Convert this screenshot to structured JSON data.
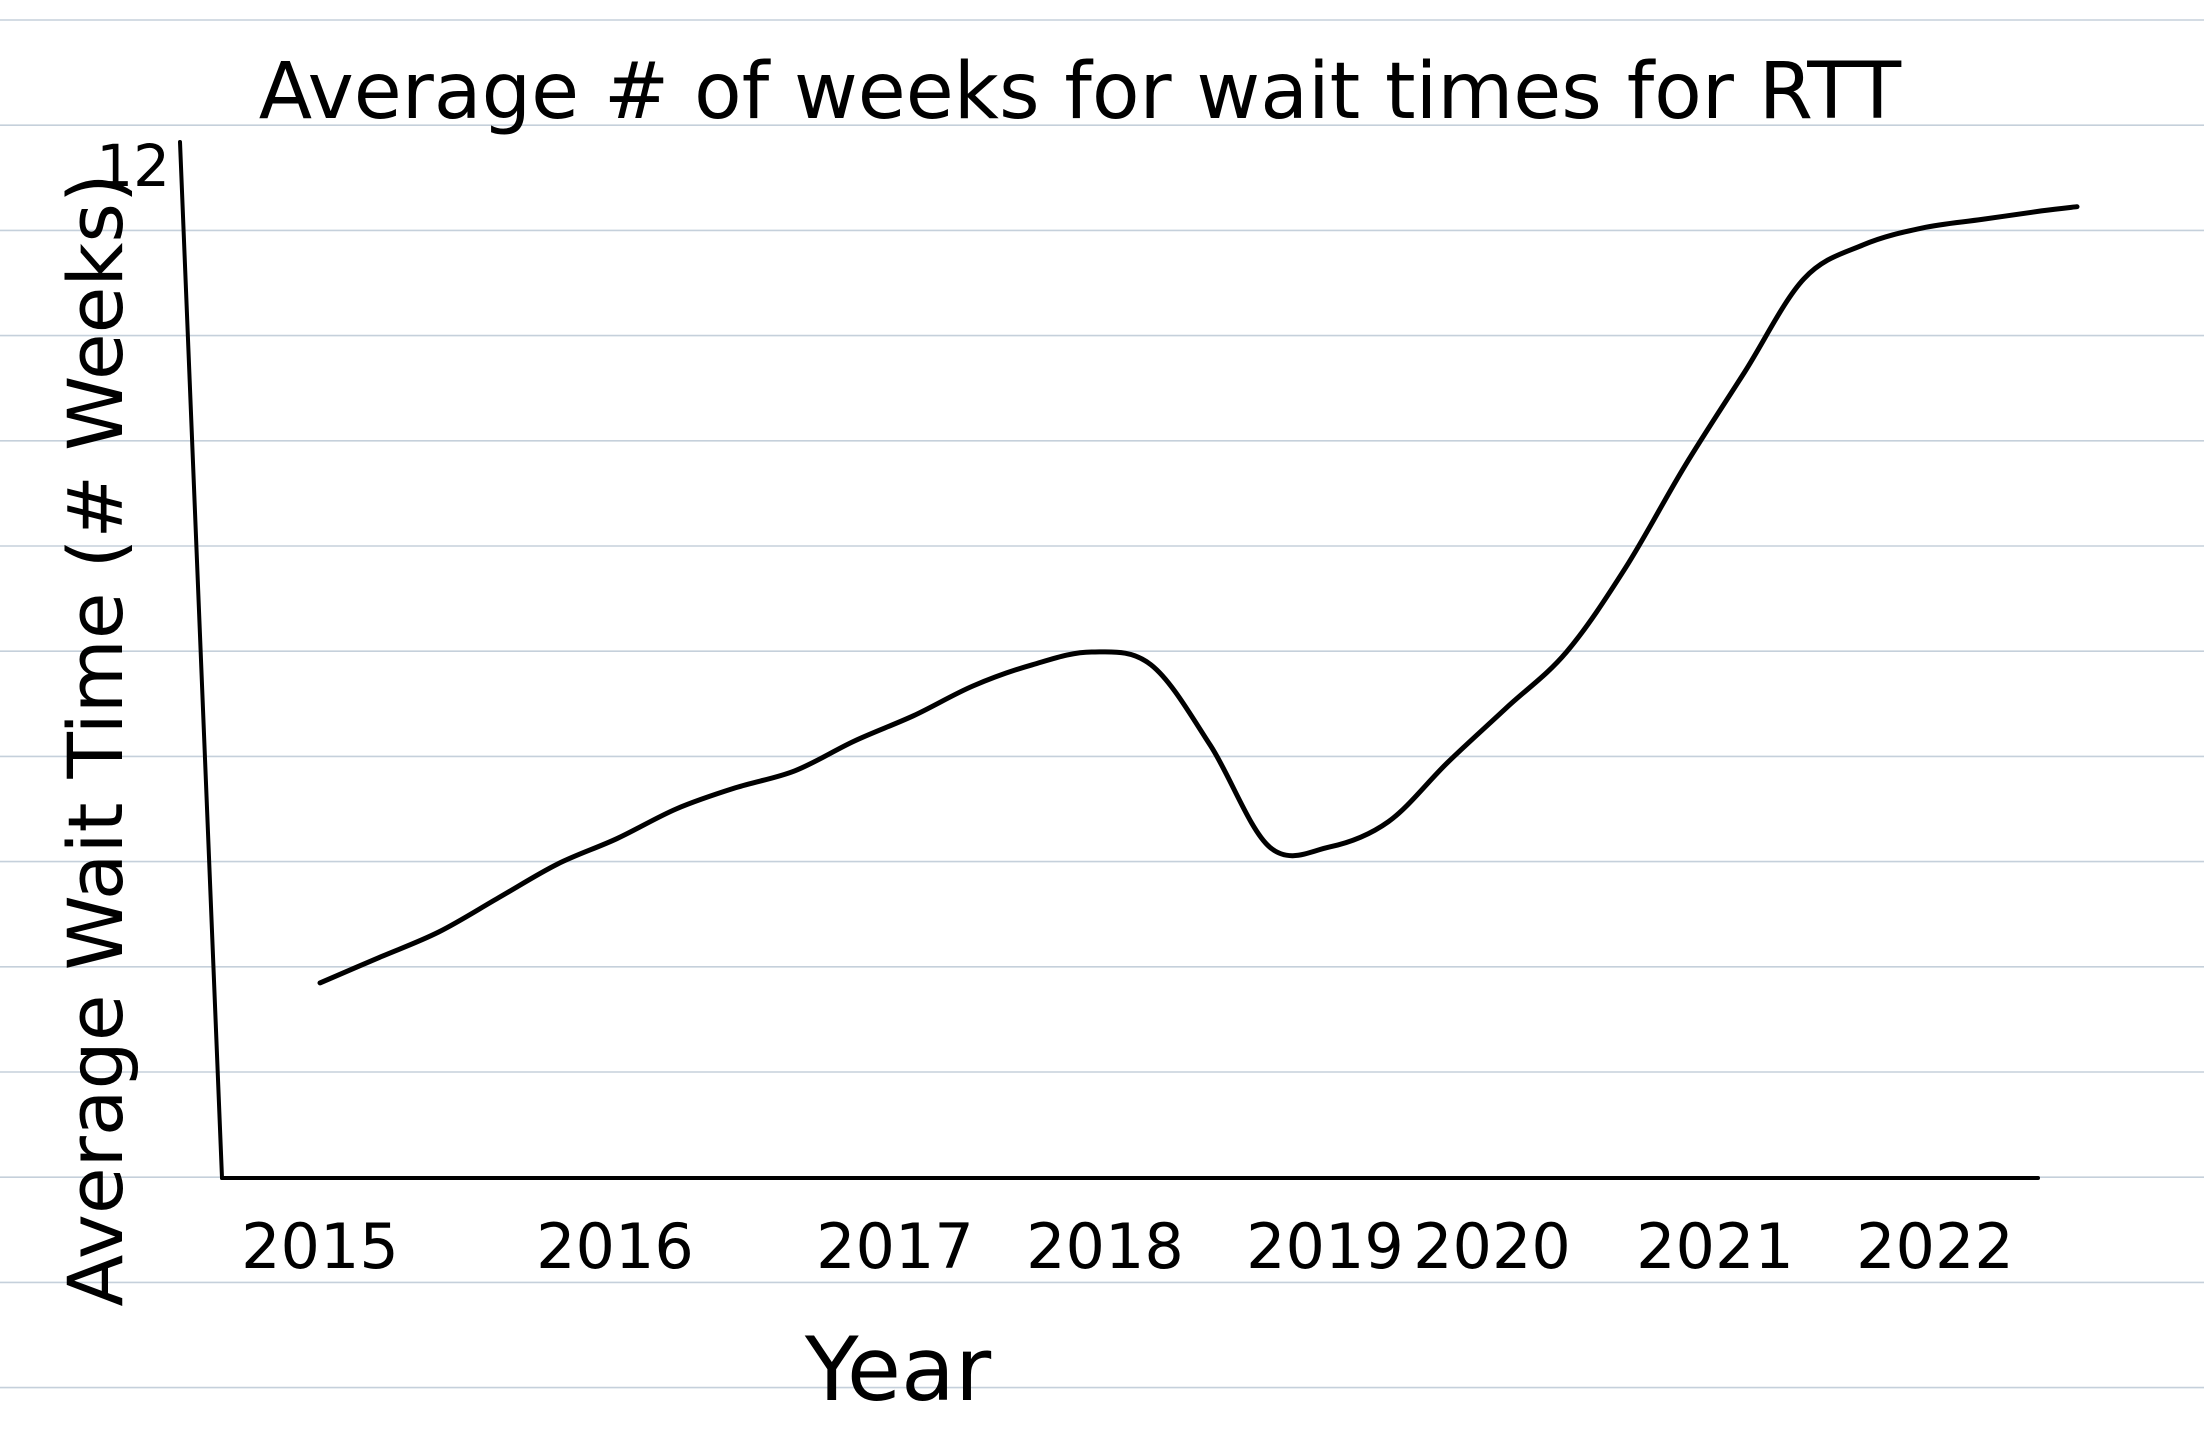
{
  "chart_data": {
    "type": "line",
    "title": "Average # of weeks for wait times for RTT",
    "xlabel": "Year",
    "ylabel": "Average Wait Time (# Weeks)",
    "y_tick_labels": [
      "12"
    ],
    "categories": [
      "2015",
      "2016",
      "2017",
      "2018",
      "2019",
      "2020",
      "2021",
      "2022"
    ],
    "ylim": [
      0,
      12
    ],
    "grid": false,
    "series": [
      {
        "x": [
          2015.0,
          2015.25,
          2015.5,
          2015.75,
          2016.0,
          2016.25,
          2016.5,
          2016.75,
          2017.0,
          2017.25,
          2017.5,
          2017.75,
          2018.0,
          2018.25,
          2018.5,
          2018.75,
          2019.0,
          2019.25,
          2019.5,
          2019.75,
          2020.0,
          2020.25,
          2020.5,
          2020.75,
          2021.0,
          2021.25,
          2021.5,
          2021.75,
          2022.0,
          2022.25,
          2022.4
        ],
        "y": [
          2.3,
          2.6,
          2.9,
          3.3,
          3.7,
          4.0,
          4.35,
          4.6,
          4.8,
          5.15,
          5.45,
          5.8,
          6.05,
          6.2,
          6.05,
          5.1,
          3.9,
          3.9,
          4.2,
          4.9,
          5.55,
          6.2,
          7.2,
          8.4,
          9.5,
          10.6,
          11.0,
          11.2,
          11.3,
          11.4,
          11.45
        ]
      }
    ]
  }
}
